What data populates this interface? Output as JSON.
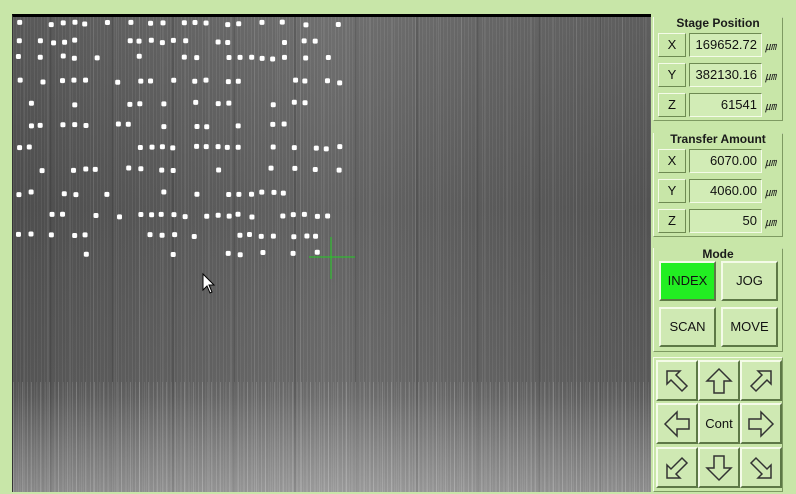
{
  "stage_position": {
    "title": "Stage Position",
    "rows": [
      {
        "axis": "X",
        "value": "169652.72",
        "unit": "㎛"
      },
      {
        "axis": "Y",
        "value": "382130.16",
        "unit": "㎛"
      },
      {
        "axis": "Z",
        "value": "61541",
        "unit": "㎛"
      }
    ]
  },
  "transfer_amount": {
    "title": "Transfer Amount",
    "rows": [
      {
        "axis": "X",
        "value": "6070.00",
        "unit": "㎛"
      },
      {
        "axis": "Y",
        "value": "4060.00",
        "unit": "㎛"
      },
      {
        "axis": "Z",
        "value": "50",
        "unit": "㎛"
      }
    ]
  },
  "mode": {
    "title": "Mode",
    "buttons": [
      {
        "label": "INDEX",
        "active": true
      },
      {
        "label": "JOG",
        "active": false
      },
      {
        "label": "SCAN",
        "active": false
      },
      {
        "label": "MOVE",
        "active": false
      }
    ]
  },
  "jog_pad": {
    "center_label": "Cont",
    "arrows": [
      "arrow-up-left-icon",
      "arrow-up-icon",
      "arrow-up-right-icon",
      "arrow-left-icon",
      "arrow-right-icon",
      "arrow-down-left-icon",
      "arrow-down-icon",
      "arrow-down-right-icon"
    ]
  },
  "colors": {
    "panel_bg": "#c8e6a8",
    "active_mode": "#22ee22",
    "crosshair": "#22cc22"
  }
}
